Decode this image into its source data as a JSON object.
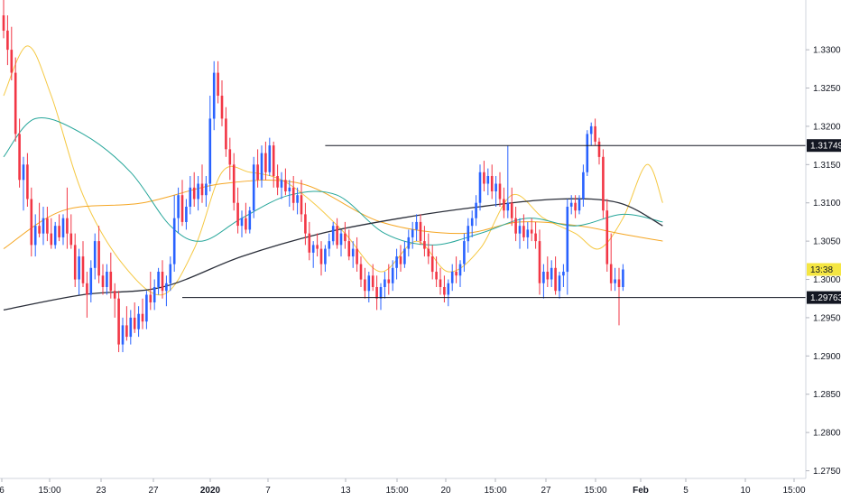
{
  "chart_data": {
    "type": "candlestick",
    "instrument_hint": "GBPUSD-like FX pair",
    "x_axis_labels": [
      "6",
      "15:00",
      "23",
      "27",
      "2020",
      "7",
      "13",
      "15:00",
      "20",
      "15:00",
      "27",
      "15:00",
      "Feb",
      "5",
      "10",
      "15:00"
    ],
    "y_axis_labels": [
      "1.33000",
      "1.32500",
      "1.32000",
      "1.31500",
      "1.31000",
      "1.30500",
      "1.30000",
      "1.29500",
      "1.29000",
      "1.28500",
      "1.28000",
      "1.27500"
    ],
    "y_range": [
      1.274,
      1.3365
    ],
    "price_markers": [
      {
        "label": "1.31749",
        "value": 1.31749,
        "style": "resistance"
      },
      {
        "label": "1.29763",
        "value": 1.29763,
        "style": "support"
      },
      {
        "label": "13:38",
        "value": 1.3013,
        "style": "countdown"
      }
    ],
    "horizontal_levels": [
      {
        "name": "resistance",
        "value": 1.31749,
        "x_start_bar": 81
      },
      {
        "name": "support",
        "value": 1.29763,
        "x_start_bar": 45
      }
    ],
    "projection_arrow": {
      "from": {
        "bar": 213,
        "value": 1.2977
      },
      "to": {
        "bar": 224,
        "value": 1.3158
      }
    },
    "candles": [
      [
        1.3345,
        1.3365,
        1.3315,
        1.3325
      ],
      [
        1.3325,
        1.3345,
        1.328,
        1.33
      ],
      [
        1.33,
        1.333,
        1.326,
        1.327
      ],
      [
        1.327,
        1.329,
        1.318,
        1.319
      ],
      [
        1.319,
        1.321,
        1.312,
        1.313
      ],
      [
        1.313,
        1.316,
        1.309,
        1.315
      ],
      [
        1.315,
        1.3165,
        1.3095,
        1.3105
      ],
      [
        1.3105,
        1.312,
        1.303,
        1.3045
      ],
      [
        1.3045,
        1.3085,
        1.303,
        1.307
      ],
      [
        1.307,
        1.31,
        1.3055,
        1.306
      ],
      [
        1.306,
        1.3095,
        1.3045,
        1.308
      ],
      [
        1.308,
        1.3095,
        1.305,
        1.306
      ],
      [
        1.306,
        1.308,
        1.304,
        1.3045
      ],
      [
        1.3045,
        1.3075,
        1.304,
        1.307
      ],
      [
        1.307,
        1.3085,
        1.305,
        1.3055
      ],
      [
        1.3055,
        1.3085,
        1.3045,
        1.308
      ],
      [
        1.308,
        1.312,
        1.304,
        1.306
      ],
      [
        1.306,
        1.3085,
        1.304,
        1.3045
      ],
      [
        1.3045,
        1.306,
        1.299,
        1.3
      ],
      [
        1.3,
        1.304,
        1.298,
        1.303
      ],
      [
        1.303,
        1.305,
        1.299,
        1.2995
      ],
      [
        1.2995,
        1.301,
        1.295,
        1.298
      ],
      [
        1.298,
        1.3025,
        1.297,
        1.3015
      ],
      [
        1.3015,
        1.306,
        1.3,
        1.305
      ],
      [
        1.305,
        1.307,
        1.2995,
        1.3005
      ],
      [
        1.3005,
        1.302,
        1.298,
        1.299
      ],
      [
        1.299,
        1.302,
        1.298,
        1.301
      ],
      [
        1.301,
        1.3035,
        1.2975,
        1.2985
      ],
      [
        1.2985,
        1.2995,
        1.295,
        1.2975
      ],
      [
        1.2975,
        1.2985,
        1.2905,
        1.2915
      ],
      [
        1.2915,
        1.295,
        1.2905,
        1.294
      ],
      [
        1.294,
        1.2965,
        1.292,
        1.2925
      ],
      [
        1.2925,
        1.296,
        1.2915,
        1.295
      ],
      [
        1.295,
        1.297,
        1.293,
        1.2935
      ],
      [
        1.2935,
        1.2965,
        1.2925,
        1.2955
      ],
      [
        1.2955,
        1.2975,
        1.2935,
        1.2945
      ],
      [
        1.2945,
        1.2985,
        1.2935,
        1.298
      ],
      [
        1.298,
        1.301,
        1.296,
        1.297
      ],
      [
        1.297,
        1.3,
        1.296,
        1.299
      ],
      [
        1.299,
        1.3015,
        1.298,
        1.301
      ],
      [
        1.301,
        1.3025,
        1.2975,
        1.2985
      ],
      [
        1.2985,
        1.3005,
        1.2965,
        1.2995
      ],
      [
        1.2995,
        1.303,
        1.2985,
        1.302
      ],
      [
        1.302,
        1.311,
        1.301,
        1.308
      ],
      [
        1.308,
        1.312,
        1.306,
        1.311
      ],
      [
        1.311,
        1.313,
        1.307,
        1.3075
      ],
      [
        1.3075,
        1.3105,
        1.3065,
        1.3095
      ],
      [
        1.3095,
        1.3135,
        1.3085,
        1.312
      ],
      [
        1.312,
        1.314,
        1.3095,
        1.3105
      ],
      [
        1.3105,
        1.3135,
        1.309,
        1.3125
      ],
      [
        1.3125,
        1.315,
        1.31,
        1.311
      ],
      [
        1.311,
        1.3135,
        1.3095,
        1.3125
      ],
      [
        1.3125,
        1.324,
        1.3115,
        1.321
      ],
      [
        1.321,
        1.3285,
        1.3195,
        1.327
      ],
      [
        1.327,
        1.3285,
        1.323,
        1.324
      ],
      [
        1.324,
        1.326,
        1.32,
        1.321
      ],
      [
        1.321,
        1.3225,
        1.316,
        1.317
      ],
      [
        1.317,
        1.3185,
        1.313,
        1.315
      ],
      [
        1.315,
        1.3165,
        1.309,
        1.31
      ],
      [
        1.31,
        1.312,
        1.306,
        1.307
      ],
      [
        1.307,
        1.309,
        1.3055,
        1.308
      ],
      [
        1.308,
        1.31,
        1.306,
        1.3065
      ],
      [
        1.3065,
        1.3095,
        1.306,
        1.309
      ],
      [
        1.309,
        1.316,
        1.308,
        1.315
      ],
      [
        1.315,
        1.317,
        1.312,
        1.313
      ],
      [
        1.313,
        1.3175,
        1.312,
        1.3165
      ],
      [
        1.3165,
        1.318,
        1.313,
        1.314
      ],
      [
        1.314,
        1.3185,
        1.3135,
        1.3175
      ],
      [
        1.3175,
        1.318,
        1.312,
        1.3135
      ],
      [
        1.3135,
        1.315,
        1.311,
        1.312
      ],
      [
        1.312,
        1.314,
        1.3105,
        1.313
      ],
      [
        1.313,
        1.3145,
        1.311,
        1.3115
      ],
      [
        1.3115,
        1.313,
        1.3095,
        1.312
      ],
      [
        1.312,
        1.3135,
        1.309,
        1.31
      ],
      [
        1.31,
        1.312,
        1.3085,
        1.311
      ],
      [
        1.311,
        1.313,
        1.3075,
        1.3085
      ],
      [
        1.3085,
        1.31,
        1.3045,
        1.306
      ],
      [
        1.306,
        1.3075,
        1.3025,
        1.3035
      ],
      [
        1.3035,
        1.305,
        1.3015,
        1.3045
      ],
      [
        1.3045,
        1.306,
        1.303,
        1.304
      ],
      [
        1.304,
        1.305,
        1.3005,
        1.302
      ],
      [
        1.302,
        1.3045,
        1.301,
        1.304
      ],
      [
        1.304,
        1.306,
        1.303,
        1.305
      ],
      [
        1.305,
        1.3075,
        1.3045,
        1.307
      ],
      [
        1.307,
        1.308,
        1.304,
        1.3045
      ],
      [
        1.3045,
        1.3065,
        1.303,
        1.306
      ],
      [
        1.306,
        1.3075,
        1.304,
        1.305
      ],
      [
        1.305,
        1.3065,
        1.3025,
        1.303
      ],
      [
        1.303,
        1.305,
        1.3015,
        1.304
      ],
      [
        1.304,
        1.3055,
        1.301,
        1.302
      ],
      [
        1.302,
        1.303,
        1.299,
        1.3
      ],
      [
        1.3,
        1.3015,
        1.2975,
        1.2985
      ],
      [
        1.2985,
        1.301,
        1.297,
        1.3005
      ],
      [
        1.3005,
        1.302,
        1.2985,
        1.299
      ],
      [
        1.299,
        1.3005,
        1.296,
        1.2975
      ],
      [
        1.2975,
        1.2995,
        1.296,
        1.299
      ],
      [
        1.299,
        1.301,
        1.2975,
        1.3
      ],
      [
        1.3,
        1.302,
        1.298,
        1.2995
      ],
      [
        1.2995,
        1.3025,
        1.2985,
        1.3015
      ],
      [
        1.3015,
        1.304,
        1.3,
        1.303
      ],
      [
        1.303,
        1.3045,
        1.301,
        1.302
      ],
      [
        1.302,
        1.305,
        1.3015,
        1.304
      ],
      [
        1.304,
        1.3065,
        1.303,
        1.3055
      ],
      [
        1.3055,
        1.3075,
        1.304,
        1.3065
      ],
      [
        1.3065,
        1.3085,
        1.305,
        1.3075
      ],
      [
        1.3075,
        1.3085,
        1.3045,
        1.305
      ],
      [
        1.305,
        1.307,
        1.303,
        1.304
      ],
      [
        1.304,
        1.306,
        1.302,
        1.303
      ],
      [
        1.303,
        1.3045,
        1.3,
        1.301
      ],
      [
        1.301,
        1.303,
        1.299,
        1.3
      ],
      [
        1.3,
        1.3015,
        1.298,
        1.299
      ],
      [
        1.299,
        1.3005,
        1.297,
        1.298
      ],
      [
        1.298,
        1.3,
        1.2965,
        1.2995
      ],
      [
        1.2995,
        1.302,
        1.2985,
        1.301
      ],
      [
        1.301,
        1.303,
        1.2995,
        1.3005
      ],
      [
        1.3005,
        1.3025,
        1.299,
        1.302
      ],
      [
        1.302,
        1.306,
        1.301,
        1.305
      ],
      [
        1.305,
        1.308,
        1.3035,
        1.307
      ],
      [
        1.307,
        1.309,
        1.3055,
        1.308
      ],
      [
        1.308,
        1.311,
        1.307,
        1.31
      ],
      [
        1.31,
        1.315,
        1.309,
        1.314
      ],
      [
        1.314,
        1.3155,
        1.3115,
        1.3125
      ],
      [
        1.3125,
        1.3145,
        1.311,
        1.3135
      ],
      [
        1.3135,
        1.315,
        1.3105,
        1.3115
      ],
      [
        1.3115,
        1.3135,
        1.3095,
        1.3125
      ],
      [
        1.3125,
        1.314,
        1.3095,
        1.3105
      ],
      [
        1.3105,
        1.312,
        1.308,
        1.309
      ],
      [
        1.309,
        1.3175,
        1.308,
        1.31
      ],
      [
        1.31,
        1.312,
        1.307,
        1.308
      ],
      [
        1.308,
        1.3095,
        1.305,
        1.306
      ],
      [
        1.306,
        1.308,
        1.304,
        1.307
      ],
      [
        1.307,
        1.3085,
        1.305,
        1.3055
      ],
      [
        1.3055,
        1.3075,
        1.304,
        1.3065
      ],
      [
        1.3065,
        1.308,
        1.305,
        1.306
      ],
      [
        1.306,
        1.3075,
        1.304,
        1.305
      ],
      [
        1.305,
        1.3065,
        1.298,
        1.2995
      ],
      [
        1.2995,
        1.302,
        1.2975,
        1.301
      ],
      [
        1.301,
        1.303,
        1.299,
        1.3
      ],
      [
        1.3,
        1.3025,
        1.299,
        1.3015
      ],
      [
        1.3015,
        1.303,
        1.298,
        1.2985
      ],
      [
        1.2985,
        1.301,
        1.2975,
        1.3005
      ],
      [
        1.3005,
        1.302,
        1.299,
        1.301
      ],
      [
        1.301,
        1.3105,
        1.298,
        1.3095
      ],
      [
        1.3095,
        1.311,
        1.3085,
        1.31
      ],
      [
        1.31,
        1.311,
        1.308,
        1.309
      ],
      [
        1.309,
        1.311,
        1.3085,
        1.3105
      ],
      [
        1.3105,
        1.315,
        1.3095,
        1.314
      ],
      [
        1.314,
        1.3195,
        1.3135,
        1.319
      ],
      [
        1.319,
        1.3205,
        1.3175,
        1.32
      ],
      [
        1.32,
        1.321,
        1.3175,
        1.318
      ],
      [
        1.318,
        1.3185,
        1.315,
        1.316
      ],
      [
        1.316,
        1.317,
        1.308,
        1.309
      ],
      [
        1.309,
        1.3105,
        1.301,
        1.302
      ],
      [
        1.302,
        1.306,
        1.2985,
        1.2995
      ],
      [
        1.2995,
        1.3015,
        1.2985,
        1.3
      ],
      [
        1.3,
        1.3015,
        1.294,
        1.299
      ],
      [
        1.299,
        1.302,
        1.2985,
        1.3013
      ]
    ],
    "moving_averages": [
      {
        "color": "#f5c842",
        "points": [
          [
            0,
            1.324
          ],
          [
            6,
            1.3305
          ],
          [
            12,
            1.324
          ],
          [
            20,
            1.311
          ],
          [
            30,
            1.302
          ],
          [
            40,
            1.298
          ],
          [
            48,
            1.304
          ],
          [
            55,
            1.314
          ],
          [
            62,
            1.314
          ],
          [
            70,
            1.313
          ],
          [
            78,
            1.31
          ],
          [
            86,
            1.306
          ],
          [
            95,
            1.301
          ],
          [
            104,
            1.305
          ],
          [
            112,
            1.301
          ],
          [
            120,
            1.304
          ],
          [
            128,
            1.311
          ],
          [
            136,
            1.308
          ],
          [
            144,
            1.306
          ],
          [
            150,
            1.304
          ],
          [
            156,
            1.308
          ],
          [
            162,
            1.315
          ],
          [
            166,
            1.31
          ]
        ]
      },
      {
        "color": "#f5a623",
        "points": [
          [
            0,
            1.304
          ],
          [
            15,
            1.309
          ],
          [
            35,
            1.31
          ],
          [
            55,
            1.3125
          ],
          [
            75,
            1.3125
          ],
          [
            95,
            1.3075
          ],
          [
            115,
            1.306
          ],
          [
            130,
            1.3075
          ],
          [
            145,
            1.307
          ],
          [
            155,
            1.306
          ],
          [
            166,
            1.305
          ]
        ]
      },
      {
        "color": "#26a69a",
        "points": [
          [
            0,
            1.316
          ],
          [
            8,
            1.321
          ],
          [
            20,
            1.319
          ],
          [
            32,
            1.314
          ],
          [
            42,
            1.307
          ],
          [
            50,
            1.305
          ],
          [
            60,
            1.308
          ],
          [
            72,
            1.311
          ],
          [
            84,
            1.311
          ],
          [
            96,
            1.306
          ],
          [
            108,
            1.3045
          ],
          [
            120,
            1.306
          ],
          [
            132,
            1.308
          ],
          [
            144,
            1.307
          ],
          [
            156,
            1.3085
          ],
          [
            166,
            1.3075
          ]
        ]
      },
      {
        "color": "#2a2e39",
        "points": [
          [
            0,
            1.296
          ],
          [
            20,
            1.298
          ],
          [
            40,
            1.299
          ],
          [
            60,
            1.303
          ],
          [
            80,
            1.306
          ],
          [
            100,
            1.308
          ],
          [
            120,
            1.3095
          ],
          [
            140,
            1.3105
          ],
          [
            155,
            1.31
          ],
          [
            166,
            1.307
          ]
        ]
      }
    ]
  },
  "colors": {
    "bull": "#2962ff",
    "bear": "#f23645",
    "level_line": "#131722",
    "countdown_bg": "#f5e642",
    "axis_bg": "#ffffff"
  }
}
